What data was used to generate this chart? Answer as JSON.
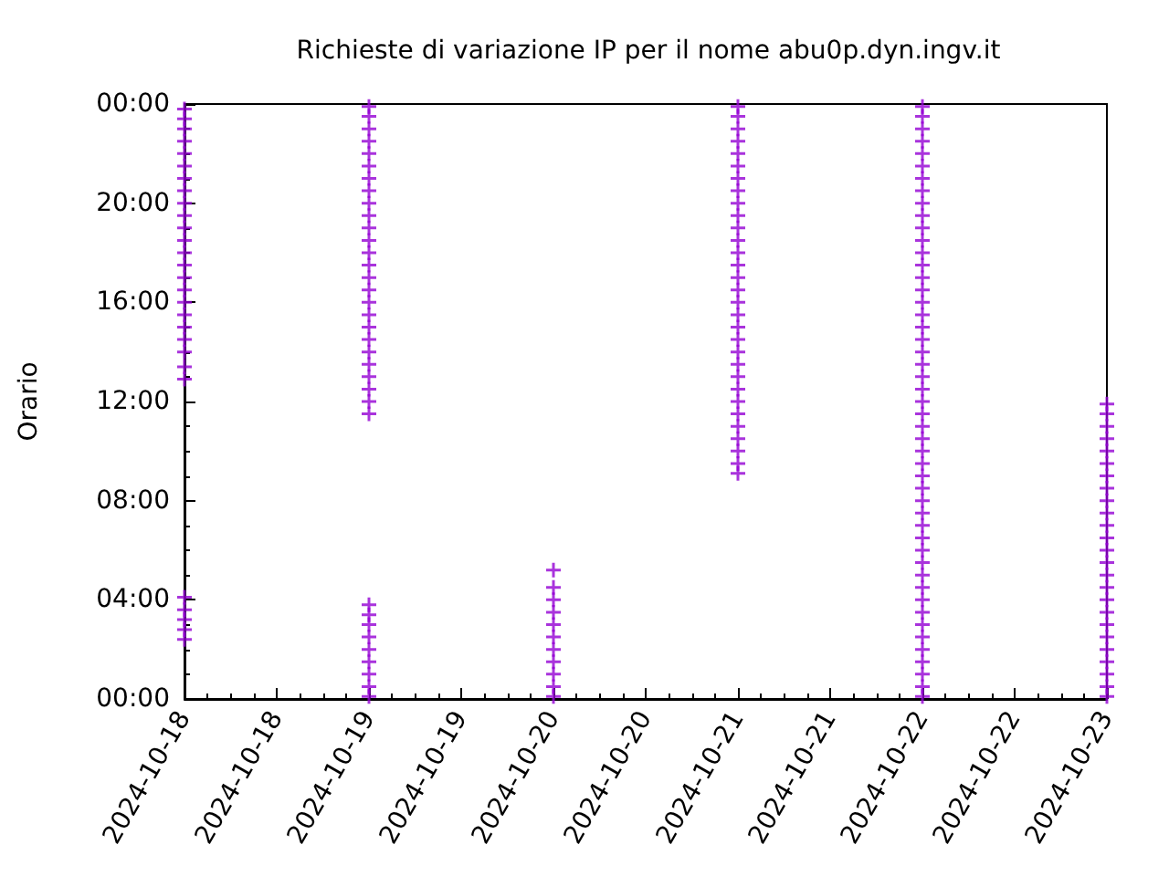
{
  "chart_data": {
    "type": "scatter",
    "title": "Richieste di variazione IP per il nome abu0p.dyn.ingv.it",
    "ylabel": "Orario",
    "marker": "cross",
    "xlim": [
      "2024-10-18",
      "2024-10-23"
    ],
    "xticks": [
      {
        "value": "2024-10-18",
        "label": "2024-10-18"
      },
      {
        "value": "2024-10-18T12:00",
        "label": "2024-10-18"
      },
      {
        "value": "2024-10-19",
        "label": "2024-10-19"
      },
      {
        "value": "2024-10-19T12:00",
        "label": "2024-10-19"
      },
      {
        "value": "2024-10-20",
        "label": "2024-10-20"
      },
      {
        "value": "2024-10-20T12:00",
        "label": "2024-10-20"
      },
      {
        "value": "2024-10-21",
        "label": "2024-10-21"
      },
      {
        "value": "2024-10-21T12:00",
        "label": "2024-10-21"
      },
      {
        "value": "2024-10-22",
        "label": "2024-10-22"
      },
      {
        "value": "2024-10-22T12:00",
        "label": "2024-10-22"
      },
      {
        "value": "2024-10-23",
        "label": "2024-10-23"
      }
    ],
    "ylim": [
      0,
      24
    ],
    "yticks": [
      {
        "value": 0,
        "label": "00:00"
      },
      {
        "value": 4,
        "label": "04:00"
      },
      {
        "value": 8,
        "label": "08:00"
      },
      {
        "value": 12,
        "label": "12:00"
      },
      {
        "value": 16,
        "label": "16:00"
      },
      {
        "value": 20,
        "label": "20:00"
      },
      {
        "value": 24,
        "label": "00:00"
      }
    ],
    "series": [
      {
        "color": "#9400d3",
        "x": [
          "2024-10-18",
          "2024-10-18",
          "2024-10-18",
          "2024-10-18",
          "2024-10-18",
          "2024-10-18",
          "2024-10-18",
          "2024-10-18",
          "2024-10-18",
          "2024-10-18",
          "2024-10-18",
          "2024-10-18",
          "2024-10-18",
          "2024-10-18",
          "2024-10-18",
          "2024-10-18",
          "2024-10-18",
          "2024-10-18",
          "2024-10-18",
          "2024-10-18",
          "2024-10-18",
          "2024-10-18",
          "2024-10-18",
          "2024-10-18",
          "2024-10-18",
          "2024-10-18",
          "2024-10-18",
          "2024-10-18"
        ],
        "values": [
          2.4,
          2.8,
          3.2,
          3.6,
          4.1,
          12.9,
          13.4,
          14,
          14.5,
          15,
          15.5,
          16,
          16.5,
          17,
          17.5,
          18,
          18.5,
          19,
          19.5,
          20,
          20.5,
          21,
          21.5,
          22,
          22.5,
          23,
          23.4,
          23.8
        ]
      },
      {
        "color": "#9400d3",
        "x": [
          "2024-10-19",
          "2024-10-19",
          "2024-10-19",
          "2024-10-19",
          "2024-10-19",
          "2024-10-19",
          "2024-10-19",
          "2024-10-19",
          "2024-10-19",
          "2024-10-19",
          "2024-10-19",
          "2024-10-19",
          "2024-10-19",
          "2024-10-19",
          "2024-10-19",
          "2024-10-19",
          "2024-10-19",
          "2024-10-19",
          "2024-10-19",
          "2024-10-19",
          "2024-10-19",
          "2024-10-19",
          "2024-10-19",
          "2024-10-19",
          "2024-10-19",
          "2024-10-19",
          "2024-10-19",
          "2024-10-19",
          "2024-10-19",
          "2024-10-19",
          "2024-10-19",
          "2024-10-19",
          "2024-10-19",
          "2024-10-19",
          "2024-10-19"
        ],
        "values": [
          0.1,
          0.5,
          1,
          1.5,
          2,
          2.5,
          3,
          3.4,
          3.8,
          11.5,
          12,
          12.5,
          13,
          13.5,
          14,
          14.5,
          15,
          15.5,
          16,
          16.5,
          17,
          17.5,
          18,
          18.5,
          19,
          19.5,
          20,
          20.5,
          21,
          21.5,
          22,
          22.5,
          23,
          23.5,
          23.9
        ]
      },
      {
        "color": "#9400d3",
        "x": [
          "2024-10-20",
          "2024-10-20",
          "2024-10-20",
          "2024-10-20",
          "2024-10-20",
          "2024-10-20",
          "2024-10-20",
          "2024-10-20",
          "2024-10-20",
          "2024-10-20",
          "2024-10-20"
        ],
        "values": [
          0.1,
          0.5,
          1,
          1.5,
          2,
          2.5,
          3,
          3.5,
          4,
          4.5,
          5.2
        ]
      },
      {
        "color": "#9400d3",
        "x": [
          "2024-10-21",
          "2024-10-21",
          "2024-10-21",
          "2024-10-21",
          "2024-10-21",
          "2024-10-21",
          "2024-10-21",
          "2024-10-21",
          "2024-10-21",
          "2024-10-21",
          "2024-10-21",
          "2024-10-21",
          "2024-10-21",
          "2024-10-21",
          "2024-10-21",
          "2024-10-21",
          "2024-10-21",
          "2024-10-21",
          "2024-10-21",
          "2024-10-21",
          "2024-10-21",
          "2024-10-21",
          "2024-10-21",
          "2024-10-21",
          "2024-10-21",
          "2024-10-21",
          "2024-10-21",
          "2024-10-21",
          "2024-10-21",
          "2024-10-21",
          "2024-10-21"
        ],
        "values": [
          9.1,
          9.5,
          10,
          10.5,
          11,
          11.5,
          12,
          12.5,
          13,
          13.5,
          14,
          14.5,
          15,
          15.5,
          16,
          16.5,
          17,
          17.5,
          18,
          18.5,
          19,
          19.5,
          20,
          20.5,
          21,
          21.5,
          22,
          22.5,
          23,
          23.5,
          23.9
        ]
      },
      {
        "color": "#9400d3",
        "x": [
          "2024-10-22",
          "2024-10-22",
          "2024-10-22",
          "2024-10-22",
          "2024-10-22",
          "2024-10-22",
          "2024-10-22",
          "2024-10-22",
          "2024-10-22",
          "2024-10-22",
          "2024-10-22",
          "2024-10-22",
          "2024-10-22",
          "2024-10-22",
          "2024-10-22",
          "2024-10-22",
          "2024-10-22",
          "2024-10-22",
          "2024-10-22",
          "2024-10-22",
          "2024-10-22",
          "2024-10-22",
          "2024-10-22",
          "2024-10-22",
          "2024-10-22",
          "2024-10-22",
          "2024-10-22",
          "2024-10-22",
          "2024-10-22",
          "2024-10-22",
          "2024-10-22",
          "2024-10-22",
          "2024-10-22",
          "2024-10-22",
          "2024-10-22",
          "2024-10-22",
          "2024-10-22",
          "2024-10-22",
          "2024-10-22",
          "2024-10-22",
          "2024-10-22",
          "2024-10-22",
          "2024-10-22",
          "2024-10-22",
          "2024-10-22",
          "2024-10-22",
          "2024-10-22",
          "2024-10-22",
          "2024-10-22"
        ],
        "values": [
          0.1,
          0.5,
          1,
          1.5,
          2,
          2.5,
          3,
          3.5,
          4,
          4.5,
          5,
          5.5,
          6,
          6.5,
          7,
          7.5,
          8,
          8.5,
          9,
          9.5,
          10,
          10.5,
          11,
          11.5,
          12,
          12.5,
          13,
          13.5,
          14,
          14.5,
          15,
          15.5,
          16,
          16.5,
          17,
          17.5,
          18,
          18.5,
          19,
          19.5,
          20,
          20.5,
          21,
          21.5,
          22,
          22.5,
          23,
          23.5,
          23.9
        ]
      },
      {
        "color": "#9400d3",
        "x": [
          "2024-10-23",
          "2024-10-23",
          "2024-10-23",
          "2024-10-23",
          "2024-10-23",
          "2024-10-23",
          "2024-10-23",
          "2024-10-23",
          "2024-10-23",
          "2024-10-23",
          "2024-10-23",
          "2024-10-23",
          "2024-10-23",
          "2024-10-23",
          "2024-10-23",
          "2024-10-23",
          "2024-10-23",
          "2024-10-23",
          "2024-10-23",
          "2024-10-23",
          "2024-10-23",
          "2024-10-23",
          "2024-10-23",
          "2024-10-23",
          "2024-10-23"
        ],
        "values": [
          0.1,
          0.5,
          1,
          1.5,
          2,
          2.5,
          3,
          3.5,
          4,
          4.5,
          5,
          5.5,
          6,
          6.5,
          7,
          7.5,
          8,
          8.5,
          9,
          9.5,
          10,
          10.5,
          11,
          11.5,
          11.9
        ]
      }
    ]
  }
}
